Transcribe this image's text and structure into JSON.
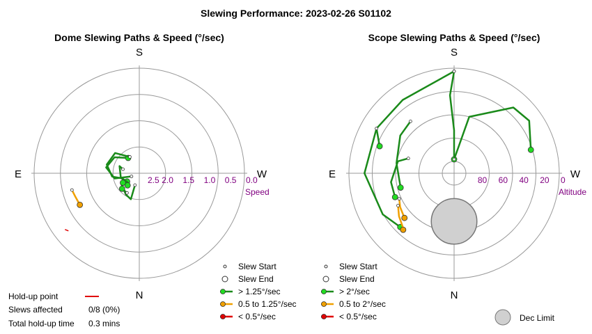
{
  "title": "Slewing Performance: 2023-02-26 S01102",
  "colors": {
    "fast": "#1a8a1a",
    "medium": "#f0a000",
    "slow": "#e00000",
    "ring": "#999999",
    "axis_label": "#800080",
    "dec_limit_fill": "#d0d0d0"
  },
  "chart_data": [
    {
      "type": "polar-line",
      "title": "Dome Slewing Paths & Speed (°/sec)",
      "directions": {
        "top": "S",
        "bottom": "N",
        "left": "E",
        "right": "W"
      },
      "radial_label": "Speed",
      "radial_ticks": [
        "2.5",
        "2.0",
        "1.5",
        "1.0",
        "0.5",
        "0.0"
      ],
      "radial_range": [
        2.5,
        0.0
      ],
      "grid": true,
      "legend": [
        {
          "marker": "start",
          "label": "Slew Start"
        },
        {
          "marker": "end",
          "label": "Slew End"
        },
        {
          "marker": "fast",
          "label": "> 1.25°/sec"
        },
        {
          "marker": "medium",
          "label": "0.5 to 1.25°/sec"
        },
        {
          "marker": "slow",
          "label": "< 0.5°/sec"
        }
      ],
      "holdup": {
        "label": "Hold-up point",
        "slews_affected_label": "Slews affected",
        "slews_affected_value": "0/8 (0%)",
        "total_label": "Total hold-up time",
        "total_value": "0.3 mins"
      },
      "paths": [
        {
          "speed": "fast",
          "points": [
            [
              248,
              2.3
            ],
            [
              258,
              1.9
            ],
            [
              280,
              1.7
            ],
            [
              303,
              1.8
            ],
            [
              324,
              2.05
            ]
          ]
        },
        {
          "speed": "fast",
          "points": [
            [
              330,
              2.05
            ],
            [
              310,
              1.75
            ],
            [
              285,
              1.7
            ],
            [
              263,
              1.85
            ],
            [
              255,
              2.05
            ],
            [
              248,
              2.1
            ],
            [
              236,
              2.15
            ]
          ]
        },
        {
          "speed": "fast",
          "points": [
            [
              284,
              2.1
            ],
            [
              290,
              2.0
            ],
            [
              258,
              2.05
            ],
            [
              232,
              2.15
            ],
            [
              224,
              2.1
            ]
          ]
        },
        {
          "speed": "fast",
          "points": [
            [
              200,
              2.2
            ],
            [
              198,
              1.85
            ],
            [
              212,
              1.9
            ],
            [
              238,
              2.0
            ],
            [
              240,
              2.05
            ]
          ]
        },
        {
          "speed": "fast",
          "points": [
            [
              212,
              1.95
            ],
            [
              228,
              1.95
            ]
          ]
        },
        {
          "speed": "medium",
          "points": [
            [
              256,
              0.85
            ],
            [
              250,
              0.88
            ],
            [
              242,
              0.9
            ]
          ]
        }
      ],
      "holdup_marks": [
        [
          232,
          0.3
        ]
      ]
    },
    {
      "type": "polar-line",
      "title": "Scope Slewing Paths & Speed (°/sec)",
      "directions": {
        "top": "S",
        "bottom": "N",
        "left": "E",
        "right": "W"
      },
      "radial_label": "Altitude",
      "radial_ticks": [
        "80",
        "60",
        "40",
        "20",
        "0"
      ],
      "radial_range": [
        90,
        0
      ],
      "grid": true,
      "dec_limit": {
        "label": "Dec Limit",
        "alt": 55,
        "az": 180,
        "radius_deg": 22
      },
      "legend": [
        {
          "marker": "start",
          "label": "Slew Start"
        },
        {
          "marker": "end",
          "label": "Slew End"
        },
        {
          "marker": "fast",
          "label": "> 2°/sec"
        },
        {
          "marker": "medium",
          "label": "0.5 to 2°/sec"
        },
        {
          "marker": "slow",
          "label": "< 0.5°/sec"
        }
      ],
      "paths": [
        {
          "speed": "fast",
          "points": [
            [
              360,
              3
            ],
            [
              357,
              26
            ],
            [
              0,
              60
            ],
            [
              0,
              88
            ]
          ]
        },
        {
          "speed": "fast",
          "points": [
            [
              0,
              88
            ],
            [
              15,
              45
            ],
            [
              42,
              16
            ],
            [
              55,
              13
            ],
            [
              73,
              24
            ]
          ]
        },
        {
          "speed": "fast",
          "points": [
            [
              360,
              3
            ],
            [
              325,
              15
            ],
            [
              300,
              15
            ],
            [
              270,
              15
            ],
            [
              240,
              22
            ],
            [
              225,
              28
            ]
          ]
        },
        {
          "speed": "fast",
          "points": [
            [
              300,
              15
            ],
            [
              290,
              25
            ]
          ]
        },
        {
          "speed": "fast",
          "points": [
            [
              320,
              36
            ],
            [
              305,
              38
            ],
            [
              280,
              45
            ],
            [
              255,
              48
            ]
          ]
        },
        {
          "speed": "fast",
          "points": [
            [
              288,
              55
            ],
            [
              282,
              46
            ],
            [
              262,
              40
            ],
            [
              248,
              40
            ]
          ]
        },
        {
          "speed": "medium",
          "points": [
            [
              245,
              43
            ],
            [
              238,
              40
            ],
            [
              228,
              37
            ]
          ]
        },
        {
          "speed": "medium",
          "points": [
            [
              240,
              39
            ],
            [
              232,
              34
            ],
            [
              224,
              30
            ],
            [
              222,
              28
            ]
          ]
        }
      ]
    }
  ]
}
